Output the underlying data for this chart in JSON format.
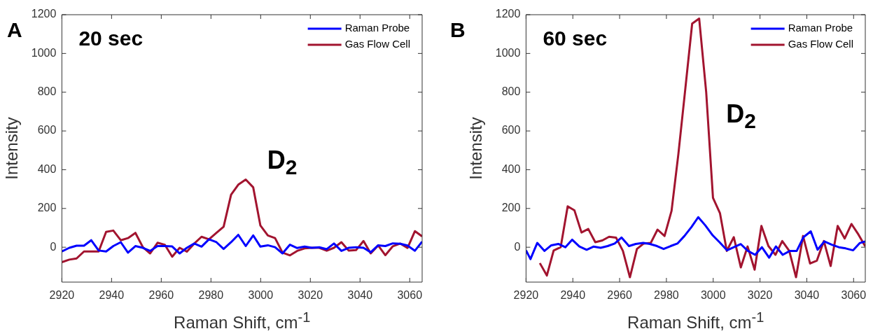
{
  "chart_data": [
    {
      "type": "line",
      "title": "A",
      "subtitle": "20 sec",
      "annotations": [
        "D$_{2}$"
      ],
      "xlabel": "Raman Shift, cm$^{-1}$",
      "ylabel": "Intensity",
      "x": [
        2920,
        2923.0,
        2925.9,
        2928.9,
        2931.8,
        2934.8,
        2937.8,
        2940.7,
        2943.7,
        2946.6,
        2949.6,
        2952.6,
        2955.5,
        2958.5,
        2961.4,
        2964.4,
        2967.4,
        2970.3,
        2973.3,
        2976.2,
        2979.2,
        2982.2,
        2985.1,
        2988.1,
        2991.0,
        2994.0,
        2997.0,
        2999.9,
        3002.9,
        3005.8,
        3008.8,
        3011.8,
        3014.7,
        3017.7,
        3020.6,
        3023.6,
        3026.6,
        3029.5,
        3032.5,
        3035.4,
        3038.4,
        3041.4,
        3044.3,
        3047.3,
        3050.2,
        3053.2,
        3056.2,
        3059.1,
        3062.1,
        3065.0
      ],
      "series": [
        {
          "name": "Raman Probe",
          "color": "#0000ff",
          "values": [
            -22,
            -3,
            8,
            8,
            36,
            -17,
            -22,
            6,
            26,
            -28,
            6,
            -3,
            -19,
            6,
            6,
            4,
            -32,
            -3,
            19,
            3,
            41,
            26,
            -9,
            26,
            64,
            6,
            61,
            3,
            10,
            0,
            -32,
            13,
            -4,
            3,
            -3,
            0,
            -10,
            19,
            -19,
            -3,
            0,
            -3,
            -26,
            10,
            6,
            20,
            18,
            9,
            -18,
            29
          ]
        },
        {
          "name": "Gas Flow Cell",
          "color": "#a2142f",
          "values": [
            -77,
            -64,
            -58,
            -22,
            -22,
            -22,
            79,
            86,
            36,
            47,
            74,
            0,
            -32,
            23,
            13,
            -49,
            -3,
            -23,
            19,
            54,
            41,
            74,
            106,
            271,
            323,
            349,
            309,
            112,
            61,
            47,
            -28,
            -42,
            -19,
            -6,
            -3,
            -3,
            -18,
            -3,
            26,
            -17,
            -15,
            32,
            -32,
            9,
            -41,
            5,
            19,
            -4,
            83,
            56
          ]
        }
      ],
      "xlim": [
        2920,
        3065
      ],
      "xticks": [
        2920,
        2940,
        2960,
        2980,
        3000,
        3020,
        3040,
        3060
      ],
      "ylim": [
        -180,
        1200
      ],
      "yticks": [
        0,
        200,
        400,
        600,
        800,
        1000,
        1200
      ],
      "legend": "top right"
    },
    {
      "type": "line",
      "title": "B",
      "subtitle": "60 sec",
      "annotations": [
        "D$_{2}$"
      ],
      "xlabel": "Raman Shift, cm$^{-1}$",
      "ylabel": "Intensity",
      "series": [
        {
          "name": "Raman Probe",
          "color": "#0000ff",
          "x": [
            2920,
            2921.9,
            2924.8,
            2927.9,
            2930.8,
            2933.8,
            2936.8,
            2939.7,
            2942.8,
            2945.9,
            2948.8,
            2951.9,
            2954.9,
            2957.9,
            2960.8,
            2964.0,
            2966.9,
            2970.1,
            2972.9,
            2976.0,
            2978.8,
            2981.8,
            2984.7,
            2987.7,
            2990.7,
            2993.6,
            2996.6,
            2999.8,
            3002.7,
            3005.9,
            3008.8,
            3011.8,
            3014.8,
            3017.9,
            3020.8,
            3023.9,
            3026.8,
            3029.7,
            3032.8,
            3035.7,
            3038.6,
            3041.7,
            3044.6,
            3047.5,
            3050.7,
            3053.7,
            3056.6,
            3059.8,
            3062.7,
            3065
          ],
          "values": [
            -16,
            -61,
            22,
            -19,
            10,
            17,
            0,
            39,
            4,
            -13,
            3,
            -3,
            6,
            19,
            50,
            6,
            17,
            22,
            17,
            6,
            -9,
            6,
            19,
            58,
            104,
            155,
            113,
            61,
            26,
            -16,
            0,
            16,
            -19,
            -39,
            0,
            -54,
            4,
            -39,
            -19,
            -19,
            52,
            82,
            -13,
            30,
            13,
            0,
            -6,
            -16,
            22,
            30
          ]
        },
        {
          "name": "Gas Flow Cell",
          "color": "#a2142f",
          "x": [
            2925.9,
            2928.9,
            2931.8,
            2934.8,
            2937.8,
            2940.7,
            2943.7,
            2946.6,
            2949.6,
            2952.6,
            2955.5,
            2958.5,
            2961.4,
            2964.4,
            2967.4,
            2970.3,
            2973.3,
            2976.2,
            2979.2,
            2982.2,
            2985.1,
            2988.1,
            2991.0,
            2994.0,
            2997.0,
            2999.9,
            3002.9,
            3005.8,
            3008.8,
            3011.8,
            3014.7,
            3017.7,
            3020.6,
            3023.6,
            3026.6,
            3029.5,
            3032.5,
            3035.4,
            3038.4,
            3041.4,
            3044.3,
            3047.3,
            3050.2,
            3053.2,
            3056.2,
            3059.1,
            3062.1,
            3065.0
          ],
          "values": [
            -82,
            -146,
            -17,
            0,
            211,
            190,
            76,
            94,
            26,
            35,
            54,
            49,
            -19,
            -155,
            -9,
            19,
            22,
            91,
            58,
            188,
            480,
            820,
            1154,
            1180,
            800,
            255,
            175,
            -19,
            52,
            -104,
            4,
            -116,
            110,
            6,
            -39,
            32,
            -19,
            -155,
            58,
            -84,
            -69,
            32,
            -97,
            110,
            45,
            120,
            65,
            4
          ]
        }
      ],
      "xlim": [
        2920,
        3065
      ],
      "xticks": [
        2920,
        2940,
        2960,
        2980,
        3000,
        3020,
        3040,
        3060
      ],
      "ylim": [
        -180,
        1200
      ],
      "yticks": [
        0,
        200,
        400,
        600,
        800,
        1000,
        1200
      ],
      "legend": "top right"
    }
  ]
}
